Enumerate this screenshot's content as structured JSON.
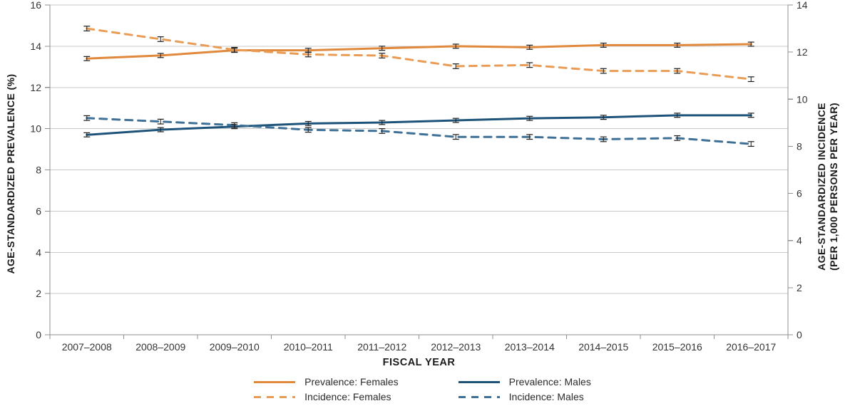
{
  "chart_data": {
    "type": "line",
    "title": "",
    "xlabel": "FISCAL YEAR",
    "grid": true,
    "legend_position": "bottom",
    "error_bars": true,
    "categories": [
      "2007–2008",
      "2008–2009",
      "2009–2010",
      "2010–2011",
      "2011–2012",
      "2012–2013",
      "2013–2014",
      "2014–2015",
      "2015–2016",
      "2016–2017"
    ],
    "left_axis": {
      "title": "AGE-STANDARDIZED PREVALENCE (%)",
      "min": 0,
      "max": 16,
      "ticks": [
        0,
        2,
        4,
        6,
        8,
        10,
        12,
        14,
        16
      ]
    },
    "right_axis": {
      "title_line1": "AGE-STANDARDIZED INCIDENCE",
      "title_line2": "(PER 1,000 PERSONS PER YEAR)",
      "min": 0,
      "max": 14,
      "ticks": [
        0,
        2,
        4,
        6,
        8,
        10,
        12,
        14
      ]
    },
    "series": [
      {
        "name": "Prevalence: Females",
        "axis": "left",
        "style": "solid",
        "color": "#E0883C",
        "values": [
          13.4,
          13.55,
          13.8,
          13.8,
          13.9,
          14.0,
          13.95,
          14.05,
          14.05,
          14.1
        ],
        "error": 0.1
      },
      {
        "name": "Incidence: Females",
        "axis": "right",
        "style": "dashed",
        "color": "#E99C55",
        "values": [
          13.0,
          12.55,
          12.1,
          11.9,
          11.85,
          11.4,
          11.45,
          11.2,
          11.2,
          10.85
        ],
        "error": 0.1
      },
      {
        "name": "Prevalence: Males",
        "axis": "left",
        "style": "solid",
        "color": "#1D5379",
        "values": [
          9.7,
          9.95,
          10.1,
          10.25,
          10.3,
          10.4,
          10.5,
          10.55,
          10.65,
          10.65
        ],
        "error": 0.1
      },
      {
        "name": "Incidence: Males",
        "axis": "right",
        "style": "dashed",
        "color": "#3F7096",
        "values": [
          9.2,
          9.05,
          8.9,
          8.7,
          8.65,
          8.4,
          8.4,
          8.3,
          8.35,
          8.1
        ],
        "error": 0.1
      }
    ],
    "colors": {
      "gridline": "#c9c9c9",
      "axis": "#919191",
      "error_bar": "#1a1a1a",
      "tick_label": "#333333"
    }
  }
}
